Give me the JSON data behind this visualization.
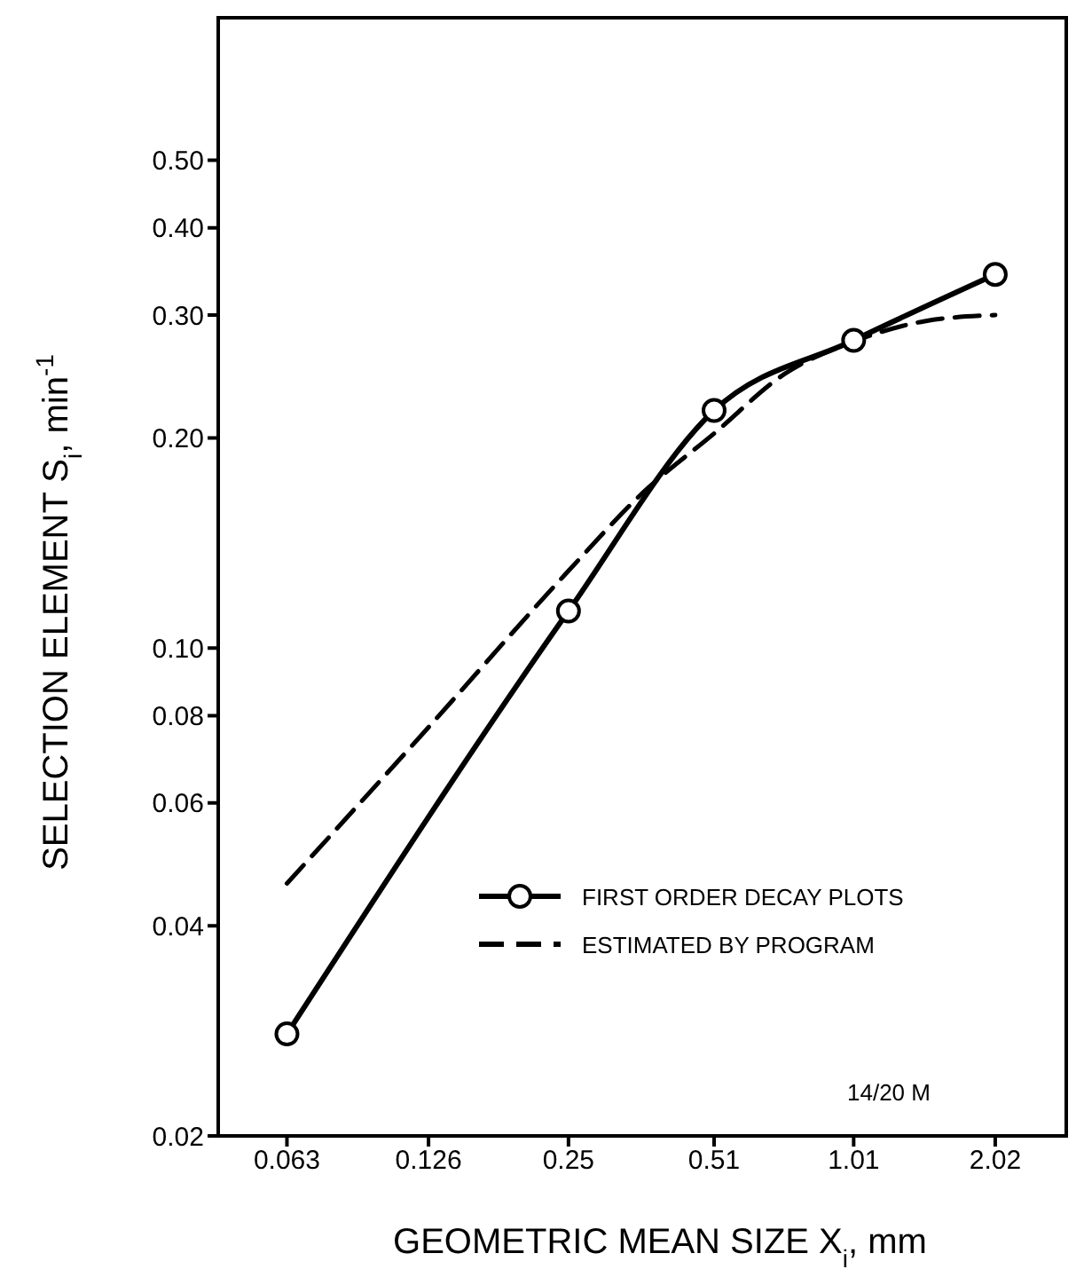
{
  "chart_data": {
    "type": "line",
    "xlabel": "GEOMETRIC MEAN SIZE X$_{i}$,  mm",
    "ylabel": "SELECTION ELEMENT S$_{i}$,  min$^{-1}$",
    "log": "xy",
    "xlim": [
      0.045,
      2.86
    ],
    "xticks": [
      0.063,
      0.126,
      0.25,
      0.51,
      1.01,
      2.02
    ],
    "ylim": [
      0.02,
      0.8
    ],
    "yticks": [
      {
        "value": 0.02,
        "label": "0.02"
      },
      {
        "value": 0.04,
        "label": "0.04"
      },
      {
        "value": 0.06,
        "label": "0.06"
      },
      {
        "value": 0.08,
        "label": "0.08"
      },
      {
        "value": 0.1,
        "label": "0.10"
      },
      {
        "value": 0.2,
        "label": "0.20"
      },
      {
        "value": 0.3,
        "label": "0.30"
      },
      {
        "value": 0.4,
        "label": "0.40"
      },
      {
        "value": 0.5,
        "label": "0.50"
      }
    ],
    "grid": false,
    "legend": "right",
    "annotations": [
      "14/20 M"
    ],
    "series": [
      {
        "name": "FIRST ORDER DECAY PLOTS",
        "color": "#000000",
        "marker": "circle",
        "line_style": "solid",
        "x": [
          0.063,
          0.25,
          0.51,
          1.01,
          2.02
        ],
        "values": [
          0.028,
          0.113,
          0.219,
          0.276,
          0.343
        ]
      },
      {
        "name": "ESTIMATED BY PROGRAM",
        "color": "#000000",
        "marker": "none",
        "line_style": "dashed",
        "x": [
          0.063,
          0.126,
          0.25,
          0.36,
          0.51,
          0.72,
          1.01,
          1.43,
          2.02
        ],
        "values": [
          0.046,
          0.077,
          0.129,
          0.167,
          0.203,
          0.247,
          0.275,
          0.294,
          0.3
        ]
      }
    ]
  }
}
